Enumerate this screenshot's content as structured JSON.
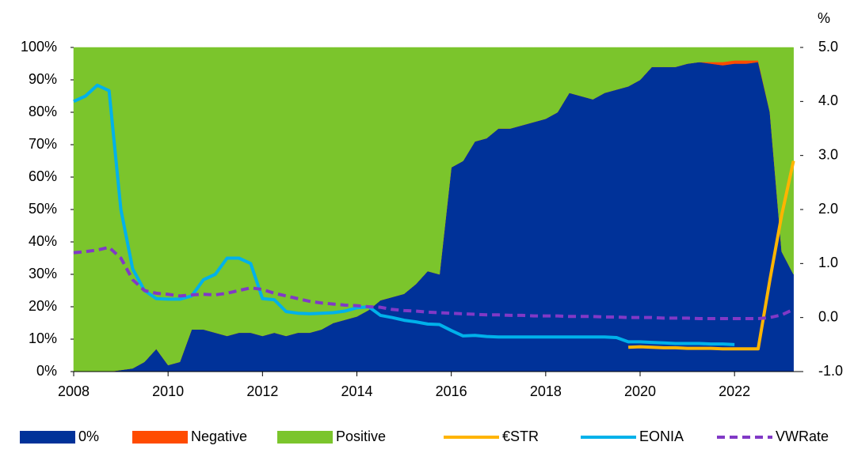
{
  "chart_data": {
    "type": "stacked_area_line",
    "y2_label": "%",
    "x": [
      2008.0,
      2008.25,
      2008.5,
      2008.75,
      2009.0,
      2009.25,
      2009.5,
      2009.75,
      2010.0,
      2010.25,
      2010.5,
      2010.75,
      2011.0,
      2011.25,
      2011.5,
      2011.75,
      2012.0,
      2012.25,
      2012.5,
      2012.75,
      2013.0,
      2013.25,
      2013.5,
      2013.75,
      2014.0,
      2014.25,
      2014.5,
      2014.75,
      2015.0,
      2015.25,
      2015.5,
      2015.75,
      2016.0,
      2016.25,
      2016.5,
      2016.75,
      2017.0,
      2017.25,
      2017.5,
      2017.75,
      2018.0,
      2018.25,
      2018.5,
      2018.75,
      2019.0,
      2019.25,
      2019.5,
      2019.75,
      2020.0,
      2020.25,
      2020.5,
      2020.75,
      2021.0,
      2021.25,
      2021.5,
      2021.75,
      2022.0,
      2022.25,
      2022.5,
      2022.75,
      2023.0,
      2023.25
    ],
    "series": [
      {
        "name": "0%",
        "color": "#003299",
        "kind": "area",
        "values": [
          0,
          0,
          0,
          0,
          0.5,
          1,
          3,
          7,
          2,
          3,
          13,
          13,
          12,
          11,
          12,
          12,
          11,
          12,
          11,
          12,
          12,
          13,
          15,
          16,
          17,
          19,
          22,
          23,
          24,
          27,
          31,
          30,
          63,
          65,
          71,
          72,
          75,
          75,
          76,
          77,
          78,
          80,
          86,
          85,
          84,
          86,
          87,
          88,
          90,
          94,
          94,
          94,
          95,
          95.5,
          95,
          94.5,
          95,
          95,
          95.5,
          80,
          37,
          30
        ]
      },
      {
        "name": "Negative",
        "color": "#ff4b00",
        "kind": "area",
        "values": [
          0,
          0,
          0,
          0,
          0,
          0,
          0,
          0,
          0,
          0,
          0,
          0,
          0,
          0,
          0,
          0,
          0,
          0,
          0,
          0,
          0,
          0,
          0,
          0,
          0,
          0,
          0,
          0,
          0,
          0,
          0,
          0,
          0,
          0,
          0,
          0,
          0,
          0,
          0,
          0,
          0,
          0,
          0,
          0,
          0,
          0,
          0,
          0,
          0,
          0,
          0,
          0,
          0,
          0,
          0.5,
          1,
          1,
          1,
          0.5,
          0,
          0,
          0
        ]
      },
      {
        "name": "Positive",
        "color": "#7bc52c",
        "kind": "area",
        "values": [
          100,
          100,
          100,
          100,
          99.5,
          99,
          97,
          93,
          98,
          97,
          87,
          87,
          88,
          89,
          88,
          88,
          89,
          88,
          89,
          88,
          88,
          87,
          85,
          84,
          83,
          81,
          78,
          77,
          76,
          73,
          69,
          70,
          37,
          35,
          29,
          28,
          25,
          25,
          24,
          23,
          22,
          20,
          14,
          15,
          16,
          14,
          13,
          12,
          10,
          6,
          6,
          6,
          5,
          4.5,
          4.5,
          4.5,
          4,
          4,
          4,
          20,
          63,
          70
        ]
      },
      {
        "name": "€STR",
        "color": "#ffb400",
        "kind": "line",
        "axis": "y2",
        "values": [
          null,
          null,
          null,
          null,
          null,
          null,
          null,
          null,
          null,
          null,
          null,
          null,
          null,
          null,
          null,
          null,
          null,
          null,
          null,
          null,
          null,
          null,
          null,
          null,
          null,
          null,
          null,
          null,
          null,
          null,
          null,
          null,
          null,
          null,
          null,
          null,
          null,
          null,
          null,
          null,
          null,
          null,
          null,
          null,
          null,
          null,
          null,
          -0.55,
          -0.54,
          -0.55,
          -0.56,
          -0.56,
          -0.57,
          -0.57,
          -0.57,
          -0.58,
          -0.58,
          -0.58,
          -0.58,
          0.7,
          1.9,
          2.9
        ]
      },
      {
        "name": "EONIA",
        "color": "#00b1ea",
        "kind": "line",
        "axis": "y2",
        "values": [
          4.0,
          4.1,
          4.3,
          4.2,
          2.0,
          0.9,
          0.5,
          0.35,
          0.34,
          0.34,
          0.4,
          0.7,
          0.8,
          1.1,
          1.1,
          1.0,
          0.35,
          0.33,
          0.11,
          0.08,
          0.07,
          0.08,
          0.09,
          0.12,
          0.18,
          0.2,
          0.04,
          0.0,
          -0.05,
          -0.08,
          -0.12,
          -0.13,
          -0.24,
          -0.34,
          -0.33,
          -0.35,
          -0.36,
          -0.36,
          -0.36,
          -0.36,
          -0.36,
          -0.36,
          -0.36,
          -0.36,
          -0.36,
          -0.36,
          -0.37,
          -0.45,
          -0.45,
          -0.46,
          -0.47,
          -0.48,
          -0.48,
          -0.48,
          -0.49,
          -0.49,
          -0.5,
          null,
          null,
          null,
          null,
          null
        ]
      },
      {
        "name": "VWRate",
        "color": "#8139c6",
        "kind": "line",
        "axis": "y2",
        "dashed": true,
        "values": [
          1.2,
          1.22,
          1.25,
          1.3,
          1.1,
          0.7,
          0.5,
          0.45,
          0.43,
          0.4,
          0.42,
          0.43,
          0.42,
          0.45,
          0.5,
          0.55,
          0.52,
          0.45,
          0.4,
          0.35,
          0.3,
          0.27,
          0.25,
          0.23,
          0.22,
          0.2,
          0.19,
          0.15,
          0.13,
          0.12,
          0.1,
          0.09,
          0.08,
          0.07,
          0.06,
          0.05,
          0.05,
          0.04,
          0.04,
          0.03,
          0.03,
          0.03,
          0.02,
          0.02,
          0.02,
          0.01,
          0.01,
          0.0,
          0.0,
          0.0,
          -0.01,
          -0.01,
          -0.01,
          -0.02,
          -0.02,
          -0.02,
          -0.02,
          -0.02,
          -0.02,
          0.0,
          0.05,
          0.15
        ]
      }
    ],
    "xlim": [
      2008,
      2023.39
    ],
    "xticks": [
      2008,
      2010,
      2012,
      2014,
      2016,
      2018,
      2020,
      2022
    ],
    "ylim": [
      0,
      100
    ],
    "yticks": [
      {
        "value": 0,
        "label": "0%"
      },
      {
        "value": 10,
        "label": "10%"
      },
      {
        "value": 20,
        "label": "20%"
      },
      {
        "value": 30,
        "label": "30%"
      },
      {
        "value": 40,
        "label": "40%"
      },
      {
        "value": 50,
        "label": "50%"
      },
      {
        "value": 60,
        "label": "60%"
      },
      {
        "value": 70,
        "label": "70%"
      },
      {
        "value": 80,
        "label": "80%"
      },
      {
        "value": 90,
        "label": "90%"
      },
      {
        "value": 100,
        "label": "100%"
      }
    ],
    "y2lim": [
      -1,
      5
    ],
    "y2ticks": [
      {
        "value": -1,
        "label": "-1.0"
      },
      {
        "value": 0,
        "label": "0.0"
      },
      {
        "value": 1,
        "label": "1.0"
      },
      {
        "value": 2,
        "label": "2.0"
      },
      {
        "value": 3,
        "label": "3.0"
      },
      {
        "value": 4,
        "label": "4.0"
      },
      {
        "value": 5,
        "label": "5.0"
      }
    ],
    "legend": "bottom"
  }
}
